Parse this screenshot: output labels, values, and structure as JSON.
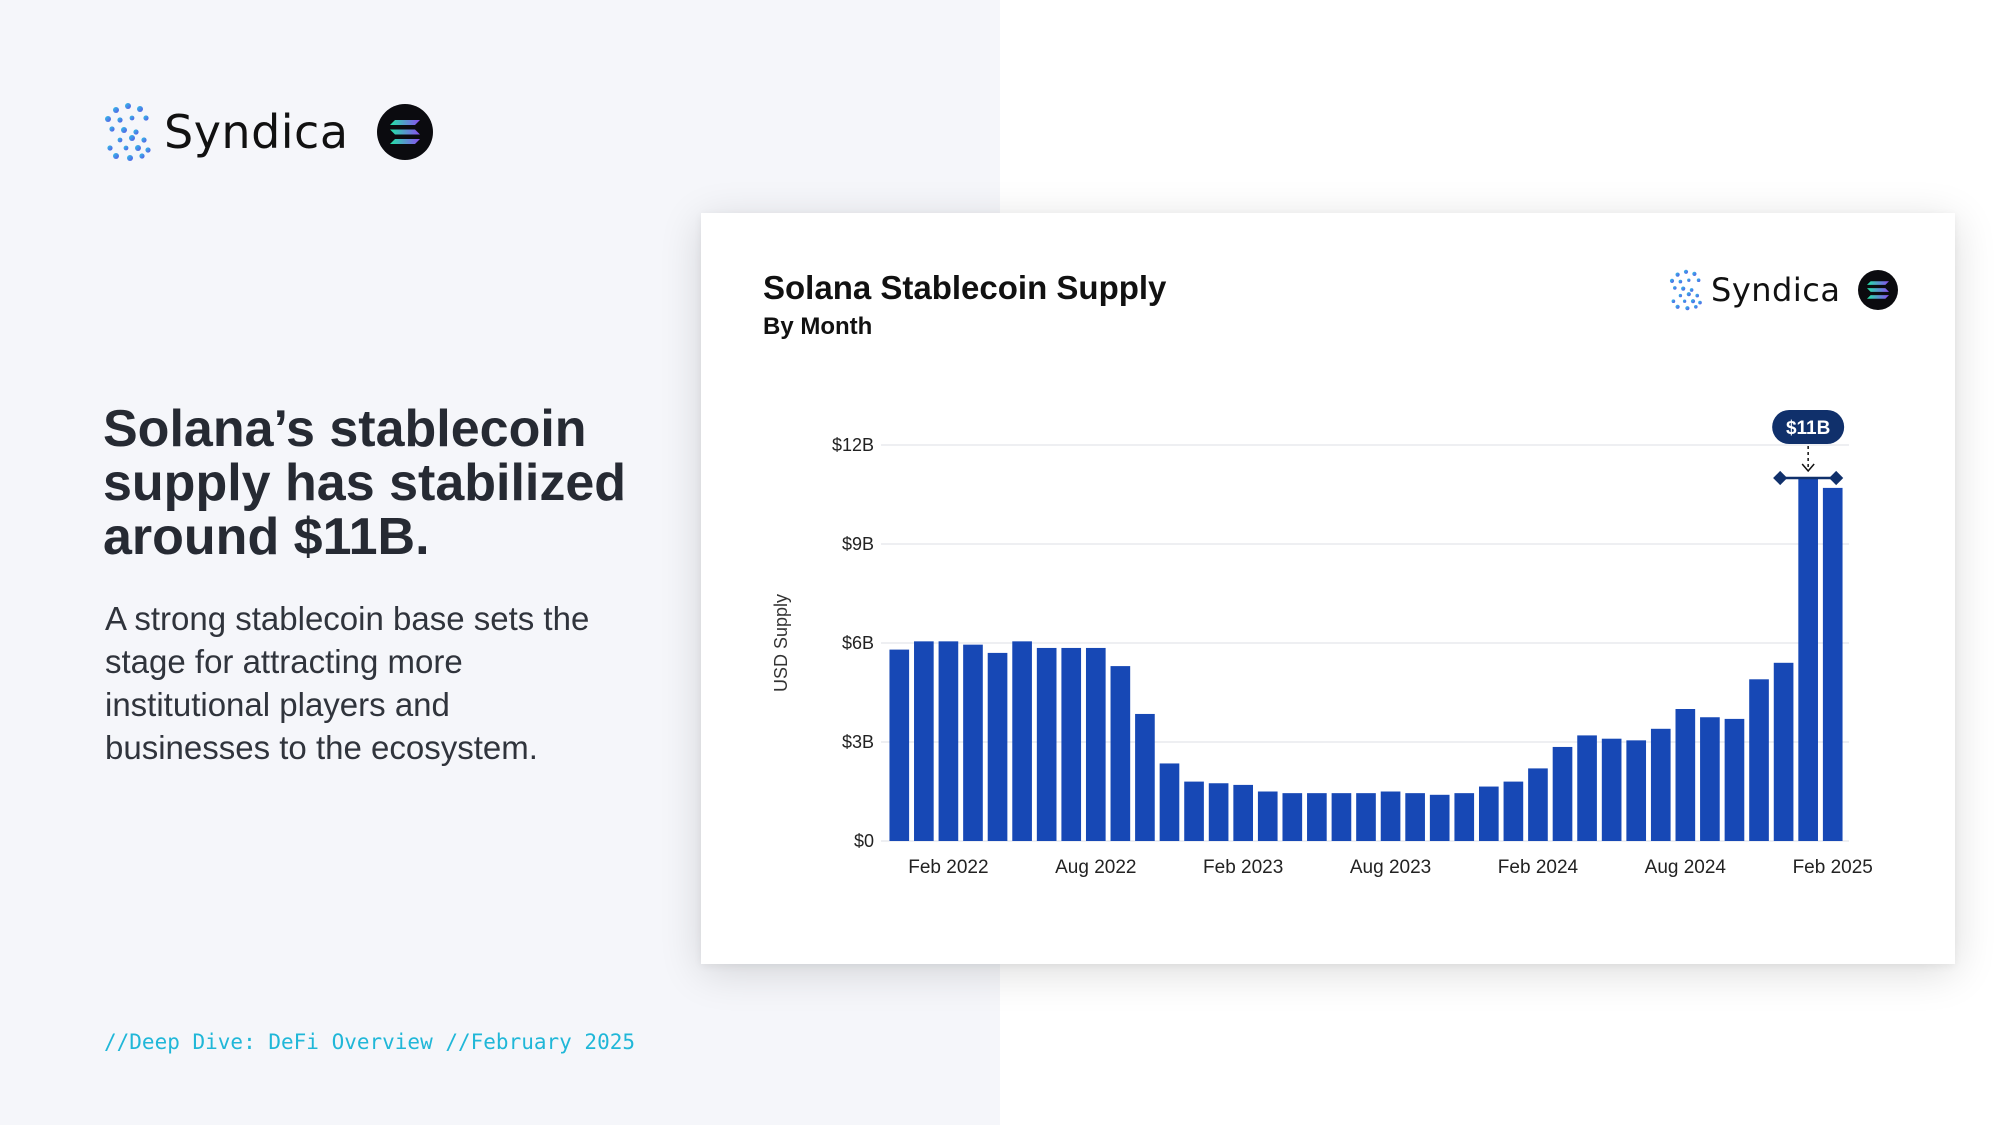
{
  "brand": {
    "name": "Syndica",
    "colors": {
      "mark_gradient": [
        "#2ec7e8",
        "#5b54e6"
      ],
      "solana_gradient": [
        "#22e5a6",
        "#8a4cf0"
      ]
    }
  },
  "headline": "Solana’s stablecoin supply has stabilized around $11B.",
  "subtext": "A strong stablecoin base sets the stage for attracting more institutional players and businesses to the ecosystem.",
  "footer": "//Deep Dive: DeFi Overview //February 2025",
  "card": {
    "brand_name": "Syndica"
  },
  "chart_data": {
    "type": "bar",
    "title": "Solana Stablecoin Supply",
    "subtitle": "By Month",
    "ylabel": "USD Supply",
    "xlabel": "",
    "ylim": [
      0,
      12
    ],
    "yticks": [
      0,
      3,
      6,
      9,
      12
    ],
    "ytick_labels": [
      "$0",
      "$3B",
      "$6B",
      "$9B",
      "$12B"
    ],
    "x_tick_labels": [
      {
        "index": 2,
        "label": "Feb 2022"
      },
      {
        "index": 8,
        "label": "Aug 2022"
      },
      {
        "index": 14,
        "label": "Feb 2023"
      },
      {
        "index": 20,
        "label": "Aug 2023"
      },
      {
        "index": 26,
        "label": "Feb 2024"
      },
      {
        "index": 32,
        "label": "Aug 2024"
      },
      {
        "index": 38,
        "label": "Feb 2025"
      }
    ],
    "categories": [
      "Dec 2021",
      "Jan 2022",
      "Feb 2022",
      "Mar 2022",
      "Apr 2022",
      "May 2022",
      "Jun 2022",
      "Jul 2022",
      "Aug 2022",
      "Sep 2022",
      "Oct 2022",
      "Nov 2022",
      "Dec 2022",
      "Jan 2023",
      "Feb 2023",
      "Mar 2023",
      "Apr 2023",
      "May 2023",
      "Jun 2023",
      "Jul 2023",
      "Aug 2023",
      "Sep 2023",
      "Oct 2023",
      "Nov 2023",
      "Dec 2023",
      "Jan 2024",
      "Feb 2024",
      "Mar 2024",
      "Apr 2024",
      "May 2024",
      "Jun 2024",
      "Jul 2024",
      "Aug 2024",
      "Sep 2024",
      "Oct 2024",
      "Nov 2024",
      "Dec 2024",
      "Jan 2025",
      "Feb 2025"
    ],
    "values": [
      5.8,
      6.05,
      6.05,
      5.95,
      5.7,
      6.05,
      5.85,
      5.85,
      5.85,
      5.3,
      3.85,
      2.35,
      1.8,
      1.75,
      1.7,
      1.5,
      1.45,
      1.45,
      1.45,
      1.45,
      1.5,
      1.45,
      1.4,
      1.45,
      1.65,
      1.8,
      2.2,
      2.85,
      3.2,
      3.1,
      3.05,
      3.4,
      4.0,
      3.75,
      3.7,
      4.9,
      5.4,
      11.0,
      10.7
    ],
    "color": "#1748b5",
    "annotation": {
      "label": "$11B",
      "index": 37,
      "value": 11.0,
      "color": "#10306b"
    }
  }
}
